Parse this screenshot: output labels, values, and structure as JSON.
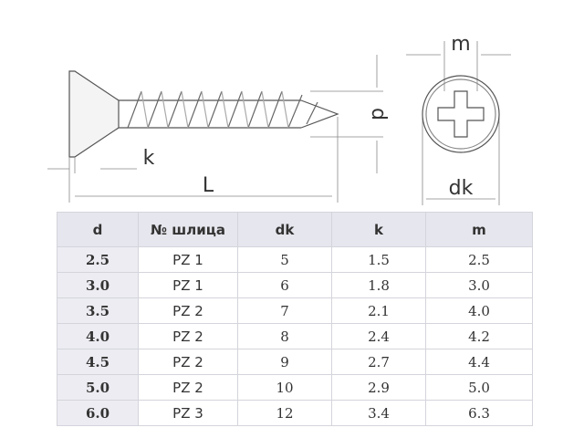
{
  "drawing": {
    "labels": {
      "m": "m",
      "d": "d",
      "k": "k",
      "L": "L",
      "dk": "dk"
    }
  },
  "table": {
    "header": [
      "d",
      "№ шлица",
      "dk",
      "k",
      "m"
    ],
    "rows": [
      [
        "2.5",
        "PZ 1",
        "5",
        "1.5",
        "2.5"
      ],
      [
        "3.0",
        "PZ 1",
        "6",
        "1.8",
        "3.0"
      ],
      [
        "3.5",
        "PZ 2",
        "7",
        "2.1",
        "4.0"
      ],
      [
        "4.0",
        "PZ 2",
        "8",
        "2.4",
        "4.2"
      ],
      [
        "4.5",
        "PZ 2",
        "9",
        "2.7",
        "4.4"
      ],
      [
        "5.0",
        "PZ 2",
        "10",
        "2.9",
        "5.0"
      ],
      [
        "6.0",
        "PZ 3",
        "12",
        "3.4",
        "6.3"
      ]
    ]
  }
}
